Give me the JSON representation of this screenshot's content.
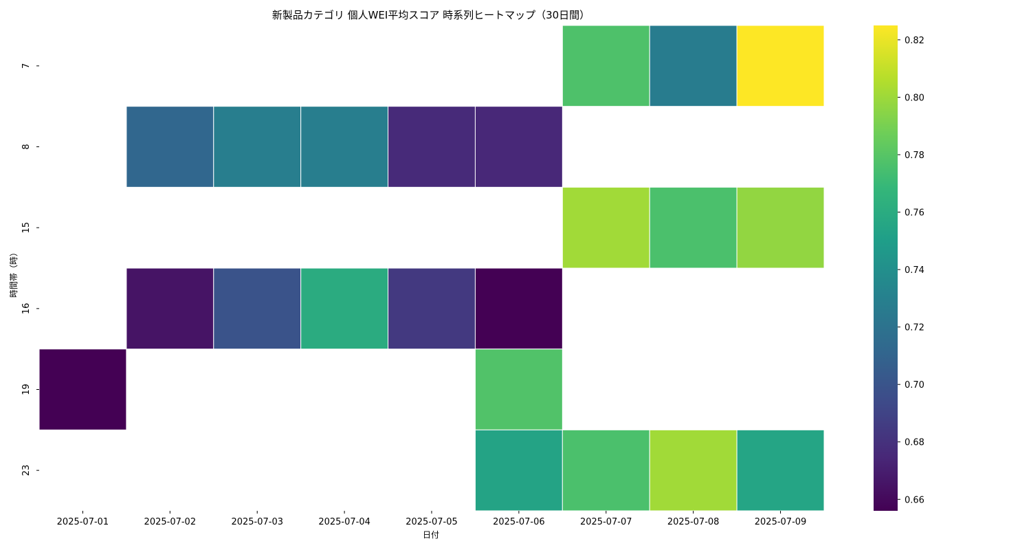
{
  "chart_data": {
    "type": "heatmap",
    "title": "新製品カテゴリ 個人WEI平均スコア 時系列ヒートマップ（30日間）",
    "xlabel": "日付",
    "ylabel": "時間帯（時）",
    "x_categories": [
      "2025-07-01",
      "2025-07-02",
      "2025-07-03",
      "2025-07-04",
      "2025-07-05",
      "2025-07-06",
      "2025-07-07",
      "2025-07-08",
      "2025-07-09"
    ],
    "y_categories": [
      "7",
      "8",
      "15",
      "16",
      "19",
      "23"
    ],
    "values": [
      [
        null,
        null,
        null,
        null,
        null,
        null,
        0.777,
        0.727,
        0.825
      ],
      [
        null,
        0.712,
        0.728,
        0.728,
        0.676,
        0.675,
        null,
        null,
        null
      ],
      [
        null,
        null,
        null,
        null,
        null,
        null,
        0.801,
        0.776,
        0.797
      ],
      [
        null,
        0.665,
        0.699,
        0.76,
        0.684,
        0.656,
        null,
        null,
        null
      ],
      [
        0.656,
        null,
        null,
        null,
        null,
        0.778,
        null,
        null,
        null
      ],
      [
        null,
        null,
        null,
        null,
        null,
        0.754,
        0.776,
        0.801,
        0.755
      ]
    ],
    "colormap": "viridis",
    "vmin": 0.656,
    "vmax": 0.825,
    "colorbar_ticks": [
      "0.66",
      "0.68",
      "0.70",
      "0.72",
      "0.74",
      "0.76",
      "0.78",
      "0.80",
      "0.82"
    ],
    "colorbar_tick_values": [
      0.66,
      0.68,
      0.7,
      0.72,
      0.74,
      0.76,
      0.78,
      0.8,
      0.82
    ],
    "missing_color": "#ffffff",
    "cell_border_color": "#ffffff"
  }
}
